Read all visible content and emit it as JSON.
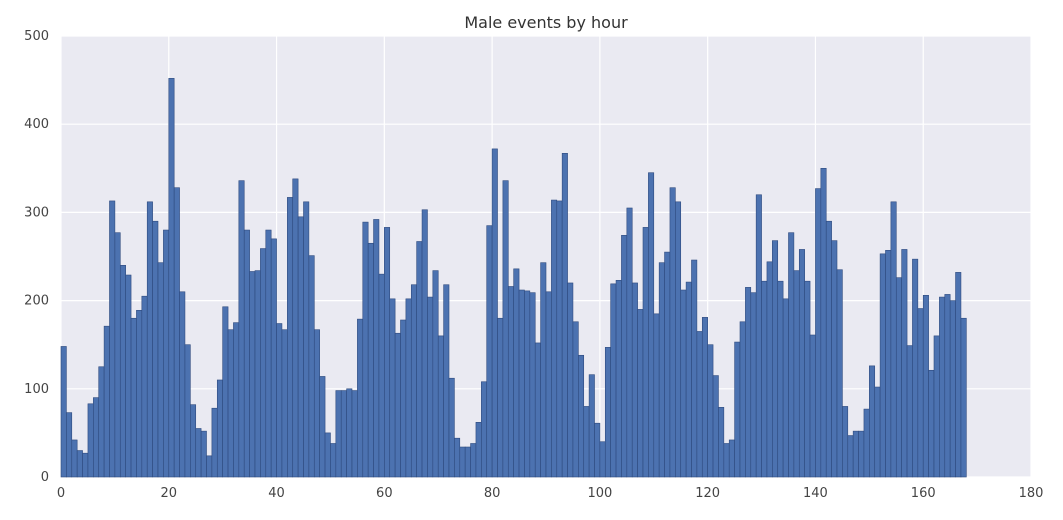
{
  "chart_data": {
    "type": "bar",
    "title": "Male events by hour",
    "xlabel": "",
    "ylabel": "",
    "xlim": [
      0,
      180
    ],
    "ylim": [
      0,
      500
    ],
    "xticks": [
      0,
      20,
      40,
      60,
      80,
      100,
      120,
      140,
      160,
      180
    ],
    "yticks": [
      0,
      100,
      200,
      300,
      400,
      500
    ],
    "grid": true,
    "background": "#eaeaf2",
    "bar_color": "#4c72b0",
    "bin_width": 1,
    "values": [
      148,
      73,
      42,
      30,
      27,
      83,
      90,
      125,
      171,
      313,
      277,
      240,
      229,
      180,
      189,
      205,
      312,
      290,
      243,
      280,
      452,
      328,
      210,
      150,
      82,
      55,
      52,
      24,
      78,
      110,
      193,
      167,
      175,
      336,
      280,
      233,
      234,
      259,
      280,
      270,
      174,
      167,
      317,
      338,
      295,
      312,
      251,
      167,
      114,
      50,
      38,
      98,
      98,
      100,
      98,
      179,
      289,
      265,
      292,
      230,
      283,
      202,
      163,
      178,
      202,
      218,
      267,
      303,
      204,
      234,
      160,
      218,
      112,
      44,
      34,
      34,
      38,
      62,
      108,
      285,
      372,
      180,
      336,
      216,
      236,
      212,
      211,
      209,
      152,
      243,
      210,
      314,
      313,
      367,
      220,
      176,
      138,
      80,
      116,
      61,
      40,
      147,
      219,
      223,
      274,
      305,
      220,
      190,
      283,
      345,
      185,
      243,
      255,
      328,
      312,
      212,
      221,
      246,
      165,
      181,
      150,
      115,
      79,
      38,
      42,
      153,
      176,
      215,
      209,
      320,
      222,
      244,
      268,
      222,
      202,
      277,
      234,
      258,
      222,
      161,
      327,
      350,
      290,
      268,
      235,
      80,
      47,
      52,
      52,
      77,
      126,
      102,
      253,
      257,
      312,
      226,
      258,
      149,
      247,
      191,
      206,
      121,
      160,
      204,
      207,
      200,
      232,
      180
    ]
  }
}
